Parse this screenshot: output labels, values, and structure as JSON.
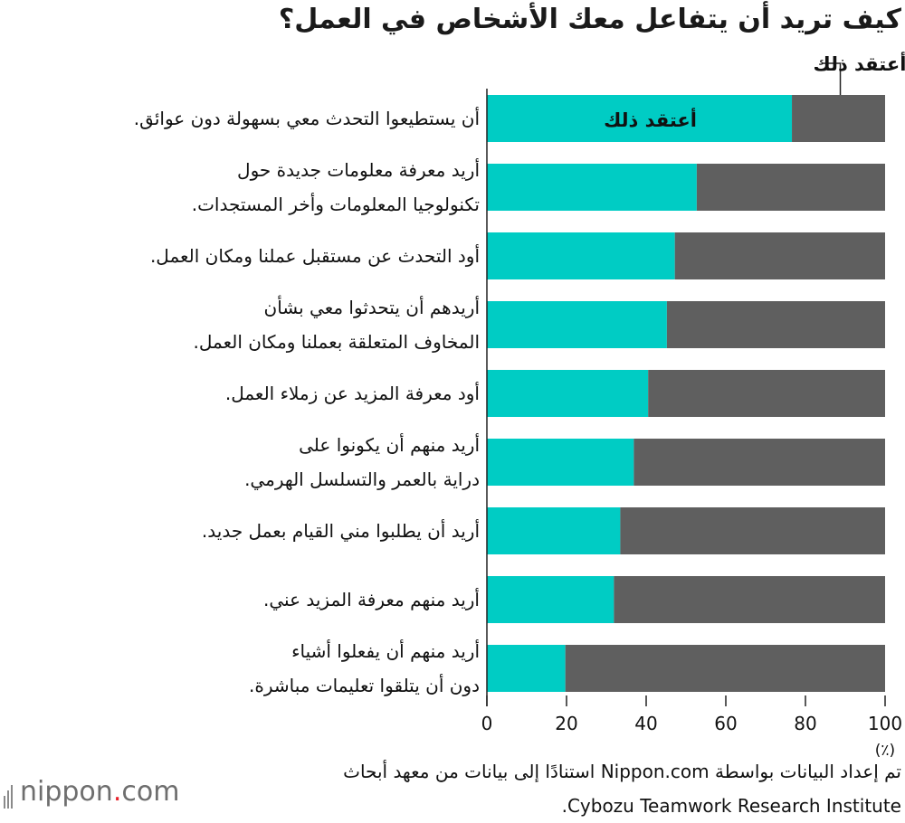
{
  "title": "كيف تريد أن يتفاعل معك الأشخاص في العمل؟",
  "colors": {
    "agree": "#00ccc4",
    "disagree": "#5f5f5f"
  },
  "legend": {
    "agree": "أعتقد ذلك",
    "disagree": "لا أعتقد ذلك"
  },
  "x_axis": {
    "unit": "(٪)",
    "ticks": [
      "0",
      "20",
      "40",
      "60",
      "80",
      "100"
    ]
  },
  "source": {
    "line1": "تم إعداد البيانات بواسطة Nippon.com استنادًا إلى بيانات من معهد أبحاث",
    "line2": "Cybozu Teamwork Research Institute."
  },
  "logo": {
    "text": "nippon",
    "dot": ".",
    "suffix": "com"
  },
  "chart_data": {
    "type": "bar",
    "orientation": "horizontal",
    "stacked": true,
    "title": "كيف تريد أن يتفاعل معك الأشخاص في العمل؟",
    "xlim": [
      0,
      100
    ],
    "xlabel": "(٪)",
    "categories": [
      [
        "أن يستطيعوا التحدث معي بسهولة دون عوائق."
      ],
      [
        "أريد معرفة معلومات جديدة حول",
        "تكنولوجيا المعلومات وأخر المستجدات."
      ],
      [
        "أود التحدث عن مستقبل عملنا ومكان العمل."
      ],
      [
        "أريدهم أن يتحدثوا معي بشأن",
        "المخاوف المتعلقة بعملنا ومكان العمل."
      ],
      [
        "أود معرفة المزيد عن زملاء العمل."
      ],
      [
        "أريد منهم أن يكونوا على",
        "دراية بالعمر والتسلسل الهرمي."
      ],
      [
        "أريد أن يطلبوا مني القيام بعمل جديد."
      ],
      [
        "أريد منهم معرفة المزيد عني."
      ],
      [
        "أريد منهم أن يفعلوا أشياء",
        "دون أن يتلقوا تعليمات مباشرة."
      ]
    ],
    "series": [
      {
        "name": "أعتقد ذلك",
        "values": [
          76.6,
          52.7,
          47.2,
          45.2,
          40.5,
          36.9,
          33.5,
          31.9,
          19.7
        ]
      },
      {
        "name": "لا أعتقد ذلك",
        "values": [
          23.4,
          47.3,
          52.8,
          54.8,
          59.5,
          63.1,
          66.5,
          68.1,
          80.3
        ]
      }
    ]
  }
}
